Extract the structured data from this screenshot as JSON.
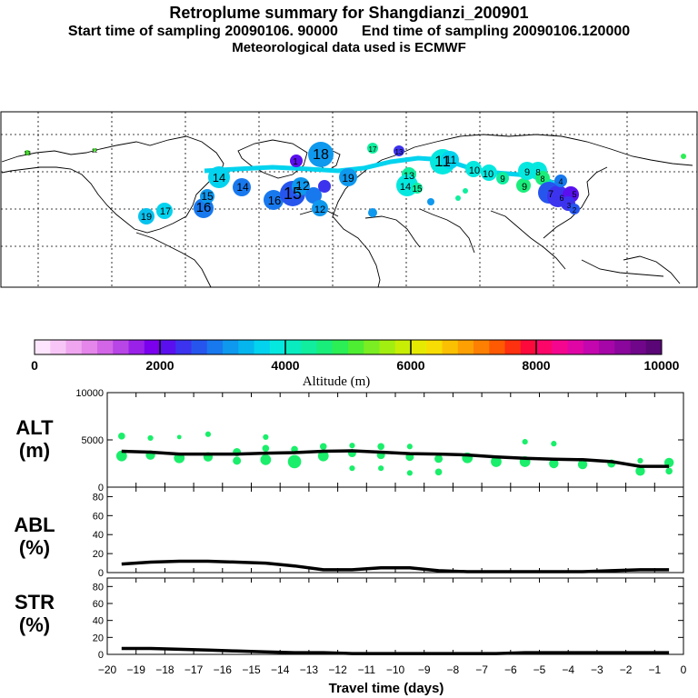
{
  "header": {
    "title": "Retroplume summary for Shangdianzi_200901",
    "start_label": "Start time of sampling 20090106. 90000",
    "end_label": "End time of sampling 20090106.120000",
    "met_label": "Meteorological data used is ECMWF"
  },
  "colorbar": {
    "title": "Altitude (m)",
    "tick_labels": [
      "0",
      "2000",
      "4000",
      "6000",
      "8000",
      "10000"
    ],
    "colors": [
      "#fde6fd",
      "#f7c6f6",
      "#efa6ef",
      "#e486ea",
      "#d266e6",
      "#b845e6",
      "#9a22e8",
      "#7a00ee",
      "#5a10ee",
      "#3c33ee",
      "#2655ee",
      "#1878ee",
      "#0e98ee",
      "#05b6ee",
      "#03d3ee",
      "#05e8e0",
      "#09ecc0",
      "#10ee9e",
      "#1aee7a",
      "#2cee55",
      "#4eee33",
      "#7aee22",
      "#a3ee11",
      "#c8ee05",
      "#e6ea03",
      "#f7dd03",
      "#fcc003",
      "#fda003",
      "#fd8003",
      "#fd5a03",
      "#fd3010",
      "#fd0a3c",
      "#fd066a",
      "#f4068e",
      "#e006a6",
      "#c406ae",
      "#a606a8",
      "#8a069c",
      "#70068a",
      "#5a0676"
    ]
  },
  "map": {
    "labels": [
      "19",
      "17",
      "16",
      "15",
      "14",
      "14",
      "16",
      "15",
      "12",
      "12",
      "18",
      "19",
      "17",
      "13",
      "13",
      "14",
      "15",
      "11",
      "11",
      "10",
      "10",
      "9",
      "9",
      "9",
      "8",
      "8",
      "7",
      "6",
      "5",
      "3",
      "4",
      "2",
      "1",
      "13",
      "12"
    ]
  },
  "chart_data": [
    {
      "type": "line",
      "panel": "ALT",
      "ylabel_line1": "ALT",
      "ylabel_line2": "(m)",
      "ylim": [
        0,
        10000
      ],
      "yticks": [
        "10000",
        "5000",
        "0"
      ],
      "x": [
        -19.5,
        -18.5,
        -17.5,
        -16.5,
        -15.5,
        -14.5,
        -13.5,
        -12.5,
        -11.5,
        -10.5,
        -9.5,
        -8.5,
        -7.5,
        -6.5,
        -5.5,
        -4.5,
        -3.5,
        -2.5,
        -1.5,
        -0.5
      ],
      "values": [
        3800,
        3700,
        3500,
        3500,
        3500,
        3600,
        3650,
        3800,
        3850,
        3700,
        3550,
        3500,
        3400,
        3200,
        3050,
        2950,
        2900,
        2700,
        2200,
        2200
      ],
      "scatter_points": [
        {
          "x": -19.5,
          "y": 3300,
          "s": 7
        },
        {
          "x": -19.5,
          "y": 5400,
          "s": 4
        },
        {
          "x": -18.5,
          "y": 3400,
          "s": 6
        },
        {
          "x": -18.5,
          "y": 5200,
          "s": 3
        },
        {
          "x": -17.5,
          "y": 3100,
          "s": 7
        },
        {
          "x": -17.5,
          "y": 5300,
          "s": 2
        },
        {
          "x": -16.5,
          "y": 3200,
          "s": 6
        },
        {
          "x": -16.5,
          "y": 5600,
          "s": 3
        },
        {
          "x": -15.5,
          "y": 2800,
          "s": 5
        },
        {
          "x": -15.5,
          "y": 3700,
          "s": 5
        },
        {
          "x": -14.5,
          "y": 2900,
          "s": 7
        },
        {
          "x": -14.5,
          "y": 4100,
          "s": 4
        },
        {
          "x": -14.5,
          "y": 5300,
          "s": 3
        },
        {
          "x": -13.5,
          "y": 2700,
          "s": 9
        },
        {
          "x": -13.5,
          "y": 4000,
          "s": 4
        },
        {
          "x": -12.5,
          "y": 3300,
          "s": 7
        },
        {
          "x": -12.5,
          "y": 4300,
          "s": 4
        },
        {
          "x": -11.5,
          "y": 2000,
          "s": 3
        },
        {
          "x": -11.5,
          "y": 3600,
          "s": 5
        },
        {
          "x": -11.5,
          "y": 4400,
          "s": 3
        },
        {
          "x": -10.5,
          "y": 2000,
          "s": 3
        },
        {
          "x": -10.5,
          "y": 3400,
          "s": 5
        },
        {
          "x": -10.5,
          "y": 4300,
          "s": 4
        },
        {
          "x": -9.5,
          "y": 1500,
          "s": 3
        },
        {
          "x": -9.5,
          "y": 3200,
          "s": 5
        },
        {
          "x": -9.5,
          "y": 4300,
          "s": 3
        },
        {
          "x": -8.5,
          "y": 1600,
          "s": 4
        },
        {
          "x": -8.5,
          "y": 3000,
          "s": 5
        },
        {
          "x": -7.5,
          "y": 3100,
          "s": 7
        },
        {
          "x": -6.5,
          "y": 2700,
          "s": 7
        },
        {
          "x": -5.5,
          "y": 2700,
          "s": 7
        },
        {
          "x": -5.5,
          "y": 4800,
          "s": 3
        },
        {
          "x": -4.5,
          "y": 2500,
          "s": 6
        },
        {
          "x": -4.5,
          "y": 4600,
          "s": 3
        },
        {
          "x": -3.5,
          "y": 2400,
          "s": 6
        },
        {
          "x": -2.5,
          "y": 2500,
          "s": 5
        },
        {
          "x": -1.5,
          "y": 1700,
          "s": 6
        },
        {
          "x": -1.5,
          "y": 2800,
          "s": 3
        },
        {
          "x": -0.5,
          "y": 1700,
          "s": 4
        },
        {
          "x": -0.5,
          "y": 2600,
          "s": 6
        }
      ]
    },
    {
      "type": "line",
      "panel": "ABL",
      "ylabel_line1": "ABL",
      "ylabel_line2": "(%)",
      "ylim": [
        0,
        90
      ],
      "yticks": [
        "80",
        "60",
        "40",
        "20",
        "0"
      ],
      "x": [
        -19.5,
        -18.5,
        -17.5,
        -16.5,
        -15.5,
        -14.5,
        -13.5,
        -12.5,
        -11.5,
        -10.5,
        -9.5,
        -8.5,
        -7.5,
        -6.5,
        -5.5,
        -4.5,
        -3.5,
        -2.5,
        -1.5,
        -0.5
      ],
      "values": [
        9,
        11,
        12,
        12,
        11,
        10,
        7,
        3,
        3,
        5,
        5,
        2,
        1,
        1,
        1,
        1,
        1,
        2,
        3,
        3
      ]
    },
    {
      "type": "line",
      "panel": "STR",
      "ylabel_line1": "STR",
      "ylabel_line2": "(%)",
      "ylim": [
        0,
        90
      ],
      "yticks": [
        "80",
        "60",
        "40",
        "20",
        "0"
      ],
      "x": [
        -19.5,
        -18.5,
        -17.5,
        -16.5,
        -15.5,
        -14.5,
        -13.5,
        -12.5,
        -11.5,
        -10.5,
        -9.5,
        -8.5,
        -7.5,
        -6.5,
        -5.5,
        -4.5,
        -3.5,
        -2.5,
        -1.5,
        -0.5
      ],
      "values": [
        7,
        7,
        6,
        5,
        4,
        3,
        2,
        2,
        1,
        1,
        1,
        1,
        1,
        1,
        2,
        2,
        2,
        2,
        2,
        2
      ],
      "xlabel": "Travel time (days)",
      "xlim": [
        -20,
        0
      ],
      "xticks": [
        "−20",
        "−19",
        "−18",
        "−17",
        "−16",
        "−15",
        "−14",
        "−13",
        "−12",
        "−11",
        "−10",
        "−9",
        "−8",
        "−7",
        "−6",
        "−5",
        "−4",
        "−3",
        "−2",
        "−1",
        "0"
      ]
    }
  ]
}
